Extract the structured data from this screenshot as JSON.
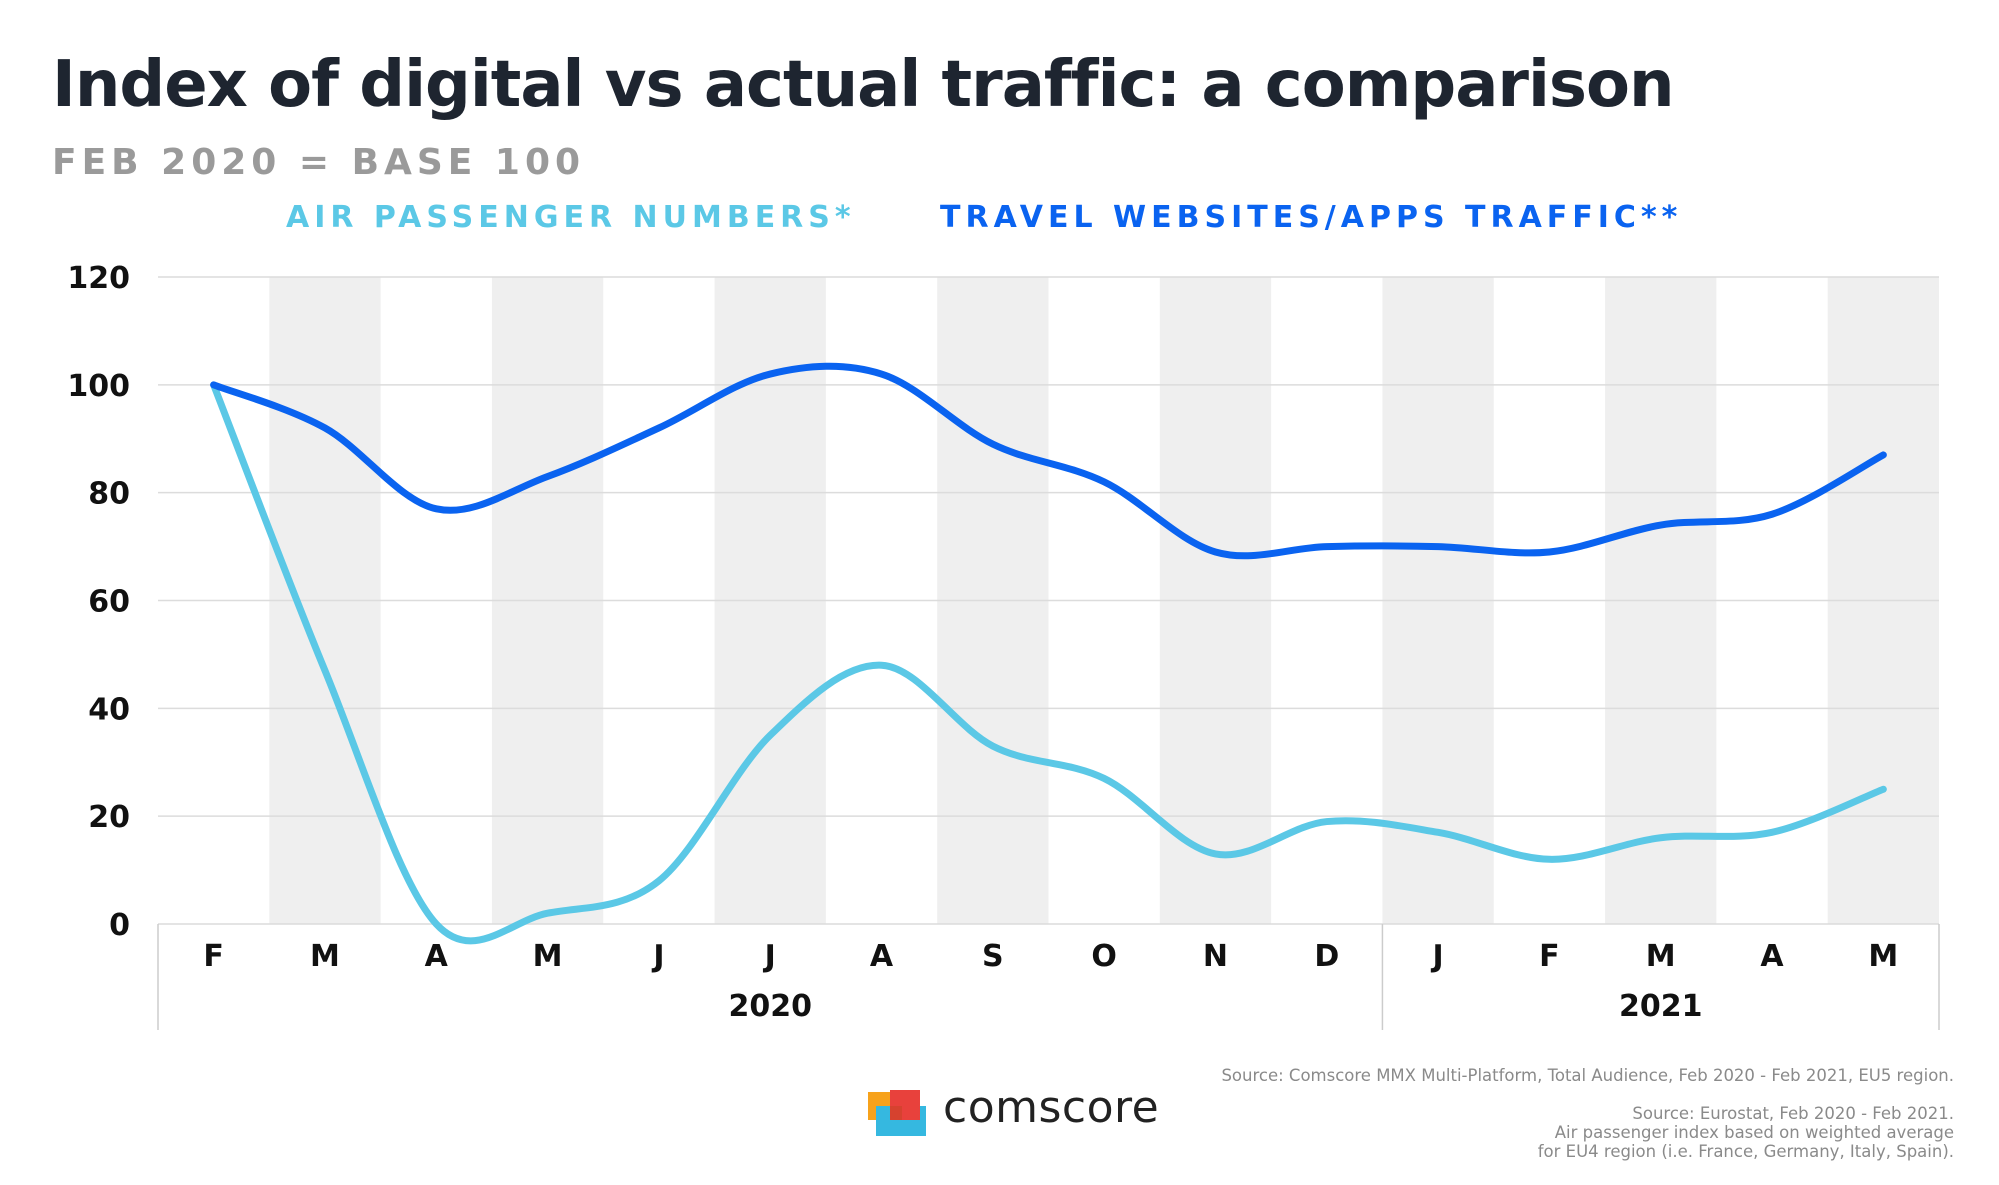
{
  "title": "Index of digital vs actual traffic: a comparison",
  "subtitle": "FEB 2020 = BASE 100",
  "colors": {
    "air": "#5bc8e6",
    "travel": "#0a63f0",
    "stripe": "#efefef",
    "grid": "#dcdcdc"
  },
  "chart_data": {
    "type": "line",
    "title": "Index of digital vs actual traffic: a comparison",
    "subtitle": "FEB 2020 = BASE 100",
    "categories": [
      "F",
      "M",
      "A",
      "M",
      "J",
      "J",
      "A",
      "S",
      "O",
      "N",
      "D",
      "J",
      "F",
      "M",
      "A",
      "M"
    ],
    "years": [
      {
        "label": "2020",
        "from": 0,
        "to": 10
      },
      {
        "label": "2021",
        "from": 11,
        "to": 15
      }
    ],
    "ylim": [
      0,
      120
    ],
    "yticks": [
      0,
      20,
      40,
      60,
      80,
      100,
      120
    ],
    "grid": true,
    "legend_position": "top",
    "series": [
      {
        "name": "AIR PASSENGER NUMBERS*",
        "color": "#5bc8e6",
        "values": [
          100,
          47,
          0,
          2,
          8,
          35,
          48,
          33,
          27,
          13,
          19,
          17,
          12,
          16,
          17,
          25
        ]
      },
      {
        "name": "TRAVEL WEBSITES/APPS TRAFFIC**",
        "color": "#0a63f0",
        "values": [
          100,
          92,
          77,
          83,
          92,
          102,
          102,
          89,
          82,
          69,
          70,
          70,
          69,
          74,
          76,
          87
        ]
      }
    ]
  },
  "sources": {
    "line1": "Source: Comscore MMX Multi-Platform, Total Audience, Feb 2020 - Feb 2021, EU5 region.",
    "line2": "Source: Eurostat, Feb 2020 - Feb 2021.",
    "line3": "Air passenger index based on weighted average",
    "line4": "for EU4 region (i.e. France, Germany, Italy, Spain)."
  },
  "brand": {
    "name": "comscore",
    "icon": "comscore-logo-icon"
  }
}
